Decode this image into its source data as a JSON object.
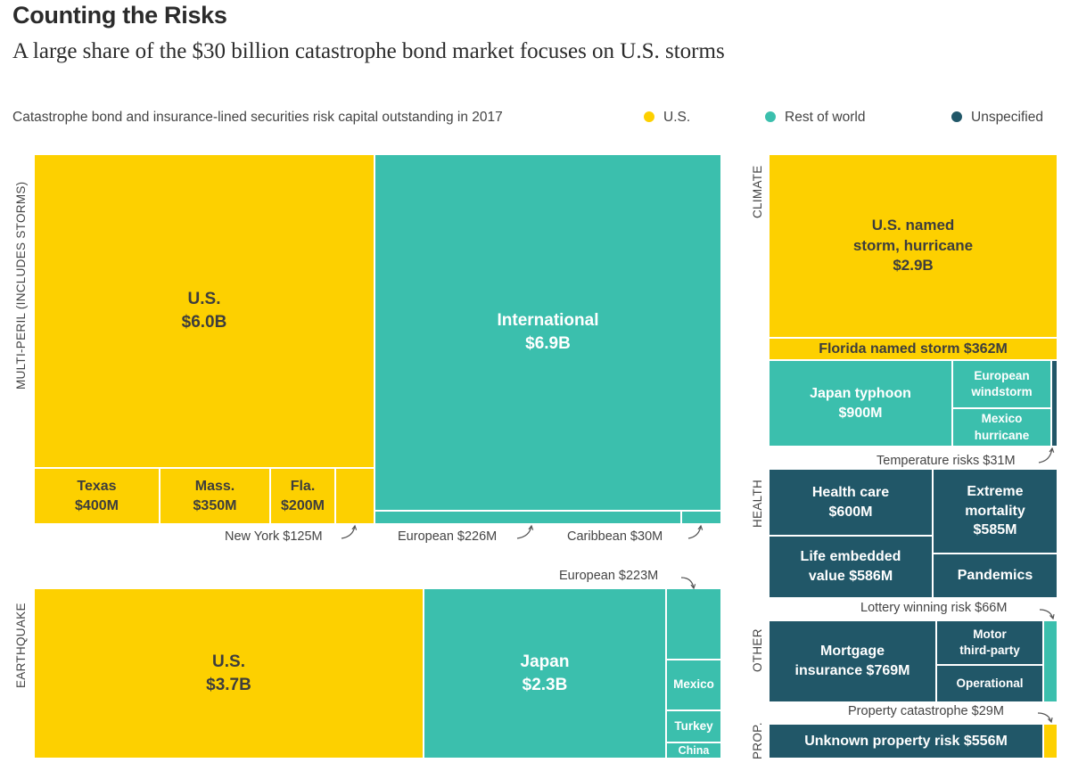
{
  "chart_data": {
    "type": "treemap",
    "title": "Counting the Risks",
    "subtitle": "A large share of the $30 billion catastrophe bond market focuses on U.S. storms",
    "caption": "Catastrophe bond and insurance-lined securities risk capital outstanding in 2017",
    "legend": [
      {
        "name": "U.S.",
        "color": "#fdd000"
      },
      {
        "name": "Rest of world",
        "color": "#3bbfad"
      },
      {
        "name": "Unspecified",
        "color": "#215768"
      }
    ],
    "categories": [
      {
        "name": "MULTI-PERIL (INCLUDES STORMS)",
        "items": [
          {
            "label": "U.S.",
            "value": "$6.0B",
            "group": "U.S."
          },
          {
            "label": "Texas",
            "value": "$400M",
            "group": "U.S."
          },
          {
            "label": "Mass.",
            "value": "$350M",
            "group": "U.S."
          },
          {
            "label": "Fla.",
            "value": "$200M",
            "group": "U.S."
          },
          {
            "label": "New York",
            "value": "$125M",
            "group": "U.S."
          },
          {
            "label": "International",
            "value": "$6.9B",
            "group": "Rest of world"
          },
          {
            "label": "European",
            "value": "$226M",
            "group": "Rest of world"
          },
          {
            "label": "Caribbean",
            "value": "$30M",
            "group": "Rest of world"
          }
        ]
      },
      {
        "name": "EARTHQUAKE",
        "items": [
          {
            "label": "U.S.",
            "value": "$3.7B",
            "group": "U.S."
          },
          {
            "label": "Japan",
            "value": "$2.3B",
            "group": "Rest of world"
          },
          {
            "label": "European",
            "value": "$223M",
            "group": "Rest of world"
          },
          {
            "label": "Mexico",
            "value": "",
            "group": "Rest of world"
          },
          {
            "label": "Turkey",
            "value": "",
            "group": "Rest of world"
          },
          {
            "label": "China",
            "value": "",
            "group": "Rest of world"
          }
        ]
      },
      {
        "name": "CLIMATE",
        "items": [
          {
            "label": "U.S. named storm, hurricane",
            "value": "$2.9B",
            "group": "U.S."
          },
          {
            "label": "Florida named storm",
            "value": "$362M",
            "group": "U.S."
          },
          {
            "label": "Japan typhoon",
            "value": "$900M",
            "group": "Rest of world"
          },
          {
            "label": "European windstorm",
            "value": "",
            "group": "Rest of world"
          },
          {
            "label": "Mexico hurricane",
            "value": "",
            "group": "Rest of world"
          },
          {
            "label": "Temperature risks",
            "value": "$31M",
            "group": "Unspecified"
          }
        ]
      },
      {
        "name": "HEALTH",
        "items": [
          {
            "label": "Health care",
            "value": "$600M",
            "group": "Unspecified"
          },
          {
            "label": "Life embedded value",
            "value": "$586M",
            "group": "Unspecified"
          },
          {
            "label": "Extreme mortality",
            "value": "$585M",
            "group": "Unspecified"
          },
          {
            "label": "Pandemics",
            "value": "",
            "group": "Unspecified"
          }
        ]
      },
      {
        "name": "OTHER",
        "items": [
          {
            "label": "Mortgage insurance",
            "value": "$769M",
            "group": "Unspecified"
          },
          {
            "label": "Motor third-party",
            "value": "",
            "group": "Unspecified"
          },
          {
            "label": "Operational",
            "value": "",
            "group": "Unspecified"
          },
          {
            "label": "Lottery winning risk",
            "value": "$66M",
            "group": "Rest of world"
          }
        ]
      },
      {
        "name": "PROP.",
        "items": [
          {
            "label": "Unknown property risk",
            "value": "$556M",
            "group": "Unspecified"
          },
          {
            "label": "Property catastrophe",
            "value": "$29M",
            "group": "U.S."
          }
        ]
      }
    ]
  }
}
